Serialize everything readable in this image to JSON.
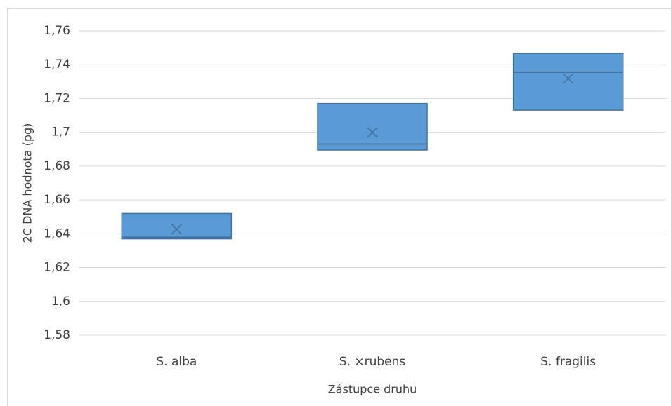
{
  "chart_data": {
    "type": "box",
    "y_label": "2C DNA hodnota (pg)",
    "x_label": "Zástupce druhu",
    "categories": [
      "S. alba",
      "S. ×rubens",
      "S. fragilis"
    ],
    "color": "#5b9bd5",
    "boxes": [
      {
        "q1": 1.637,
        "median": 1.638,
        "q3": 1.652,
        "mean": 1.6426
      },
      {
        "q1": 1.6895,
        "median": 1.693,
        "q3": 1.717,
        "mean": 1.6999
      },
      {
        "q1": 1.7131,
        "median": 1.7355,
        "q3": 1.7467,
        "mean": 1.7318
      }
    ],
    "ylim": [
      1.58,
      1.76
    ],
    "yticks": [
      {
        "value": 1.58,
        "label": "1,58"
      },
      {
        "value": 1.6,
        "label": "1,6"
      },
      {
        "value": 1.62,
        "label": "1,62"
      },
      {
        "value": 1.64,
        "label": "1,64"
      },
      {
        "value": 1.66,
        "label": "1,66"
      },
      {
        "value": 1.68,
        "label": "1,68"
      },
      {
        "value": 1.7,
        "label": "1,7"
      },
      {
        "value": 1.72,
        "label": "1,72"
      },
      {
        "value": 1.74,
        "label": "1,74"
      },
      {
        "value": 1.76,
        "label": "1,76"
      }
    ],
    "grid": true
  }
}
